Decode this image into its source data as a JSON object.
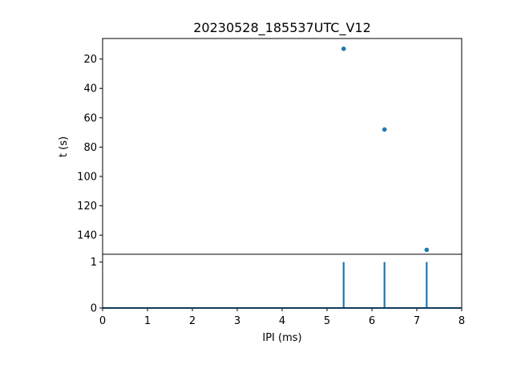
{
  "chart_data": [
    {
      "type": "scatter",
      "title": "20230528_185537UTC_V12",
      "ylabel": "t (s)",
      "y_inverted": true,
      "xlim": [
        0,
        8
      ],
      "ylim": [
        153,
        6
      ],
      "yticks": [
        20,
        40,
        60,
        80,
        100,
        120,
        140
      ],
      "color": "#1f77b4",
      "points": [
        {
          "x": 5.37,
          "y": 13
        },
        {
          "x": 6.28,
          "y": 68
        },
        {
          "x": 7.22,
          "y": 150
        }
      ]
    },
    {
      "type": "line",
      "xlabel": "IPI (ms)",
      "xlim": [
        0,
        8
      ],
      "ylim": [
        0,
        1.17
      ],
      "xticks": [
        0,
        1,
        2,
        3,
        4,
        5,
        6,
        7,
        8
      ],
      "yticks": [
        0,
        1
      ],
      "color": "#1f77b4",
      "baseline": 0,
      "spikes": [
        {
          "x": 5.37,
          "y": 1
        },
        {
          "x": 6.28,
          "y": 1
        },
        {
          "x": 7.22,
          "y": 1
        }
      ]
    }
  ]
}
